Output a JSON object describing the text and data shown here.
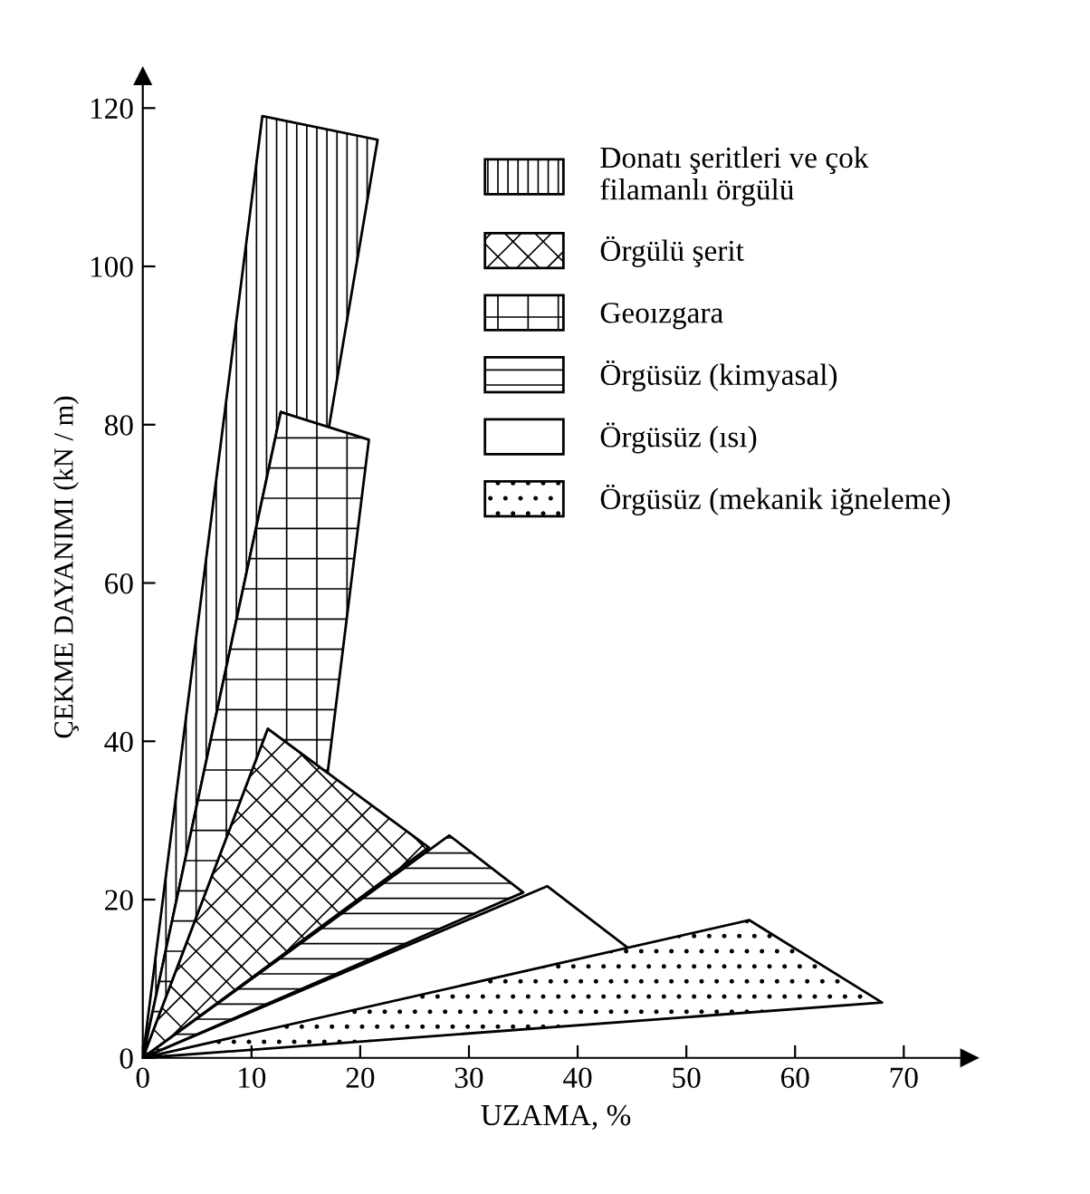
{
  "chart_data": {
    "type": "area",
    "xlabel": "UZAMA, %",
    "ylabel": "ÇEKME DAYANIMI (kN / m)",
    "xlim": [
      0,
      76
    ],
    "ylim": [
      0,
      124
    ],
    "xticks": [
      0,
      10,
      20,
      30,
      40,
      50,
      60,
      70
    ],
    "yticks": [
      0,
      20,
      40,
      60,
      80,
      100,
      120
    ],
    "grid": false,
    "legend": "top right",
    "series": [
      {
        "name": "Donatı şeritleri ve çok\nfilamanlı örgülü",
        "color": "#000000",
        "x": [
          0,
          11,
          21.6,
          17.1,
          12.7,
          0
        ],
        "values": [
          0,
          119,
          116,
          79.5,
          81.6,
          0
        ]
      },
      {
        "name": "Örgülü şerit",
        "color": "#000000",
        "x": [
          0,
          11.5,
          26.3,
          0
        ],
        "values": [
          0,
          41.6,
          26.6,
          0
        ]
      },
      {
        "name": "Geoızgara",
        "color": "#000000",
        "x": [
          0,
          12.7,
          20.8,
          17,
          11.5,
          0
        ],
        "values": [
          0,
          81.6,
          78.1,
          36,
          41.6,
          0
        ]
      },
      {
        "name": "Örgüsüz (kimyasal)",
        "color": "#000000",
        "x": [
          0,
          28.2,
          35,
          0
        ],
        "values": [
          0,
          28.1,
          20.9,
          0
        ]
      },
      {
        "name": "Örgüsüz (ısı)",
        "color": "#000000",
        "x": [
          0,
          37.2,
          44.9,
          0
        ],
        "values": [
          0,
          21.7,
          13.6,
          0
        ]
      },
      {
        "name": "Örgüsüz (mekanik iğneleme)",
        "color": "#000000",
        "x": [
          0,
          55.8,
          68,
          0
        ],
        "values": [
          0,
          17.4,
          7,
          0
        ]
      }
    ]
  }
}
